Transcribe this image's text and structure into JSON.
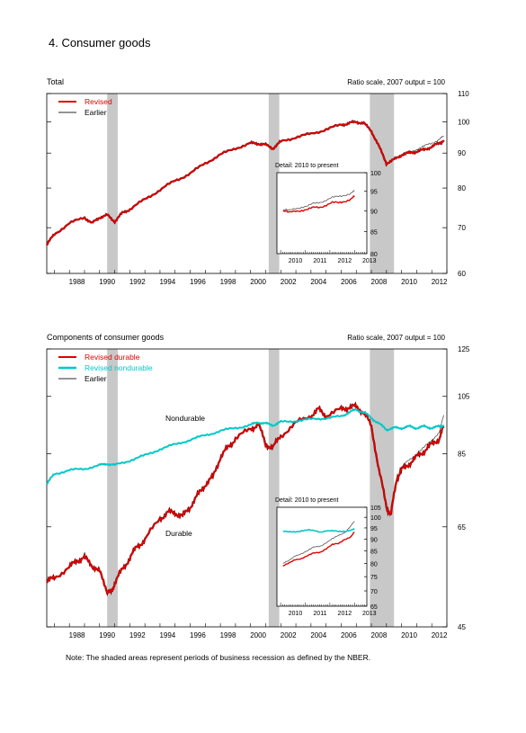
{
  "page_title": "4. Consumer goods",
  "note": "Note: The shaded areas represent periods of business recession as defined by the NBER.",
  "colors": {
    "revised": "#e00000",
    "revised_dark": "#7a0000",
    "earlier": "#555555",
    "nondurable": "#00c8c8",
    "recession": "#c8c8c8"
  },
  "chart_data": [
    {
      "type": "line",
      "title": "Total",
      "scale_note": "Ratio scale, 2007 output = 100",
      "y_scale": "log",
      "ylim": [
        60,
        110
      ],
      "xlim": [
        1986.5,
        2013
      ],
      "y_ticks": [
        60,
        70,
        80,
        90,
        100,
        110
      ],
      "x_ticks": [
        "1988",
        "1990",
        "1992",
        "1994",
        "1996",
        "1998",
        "2000",
        "2002",
        "2004",
        "2006",
        "2008",
        "2010",
        "2012"
      ],
      "recessions": [
        [
          1990.5,
          1991.2
        ],
        [
          2001.2,
          2001.9
        ],
        [
          2007.9,
          2009.5
        ]
      ],
      "legend": [
        "Revised",
        "Earlier"
      ],
      "series": [
        {
          "name": "Revised",
          "x": [
            1986.5,
            1987,
            1988,
            1989,
            1989.5,
            1990,
            1990.5,
            1991,
            1991.5,
            1992,
            1993,
            1994,
            1995,
            1996,
            1997,
            1998,
            1999,
            2000,
            2000.5,
            2001,
            2001.5,
            2002,
            2003,
            2004,
            2005,
            2006,
            2006.5,
            2007,
            2007.5,
            2008,
            2008.5,
            2009,
            2009.5,
            2010,
            2010.5,
            2011,
            2011.5,
            2012,
            2012.5,
            2012.8
          ],
          "values": [
            66,
            68.5,
            71,
            72.5,
            71,
            72.5,
            73,
            71.5,
            73.5,
            74.5,
            77,
            79.5,
            82,
            84,
            87,
            89.5,
            91.5,
            93,
            93,
            92.5,
            91.5,
            93.5,
            95,
            96,
            97.5,
            99,
            99.5,
            100,
            99.5,
            97,
            92,
            87,
            88,
            89.5,
            90,
            90.5,
            91,
            92,
            93,
            94
          ]
        },
        {
          "name": "Earlier",
          "x": [
            2010,
            2010.5,
            2011,
            2011.5,
            2012,
            2012.5,
            2012.8
          ],
          "values": [
            89.6,
            90.3,
            91.2,
            92,
            93.2,
            94.2,
            95.2
          ]
        }
      ],
      "inset": {
        "title": "Detail: 2010 to present",
        "ylim": [
          80,
          100
        ],
        "y_ticks": [
          80,
          85,
          90,
          95,
          100
        ],
        "x_ticks": [
          "2010",
          "2011",
          "2012",
          "2013"
        ],
        "series": [
          {
            "name": "Revised",
            "x": [
              2010,
              2010.25,
              2010.5,
              2010.75,
              2011,
              2011.25,
              2011.5,
              2011.75,
              2012,
              2012.25,
              2012.5,
              2012.75,
              2012.9
            ],
            "values": [
              90,
              89.5,
              90,
              90.2,
              90.3,
              90.8,
              91,
              91.5,
              92,
              92,
              92.5,
              93,
              93.6
            ]
          },
          {
            "name": "Earlier",
            "x": [
              2010,
              2010.25,
              2010.5,
              2010.75,
              2011,
              2011.25,
              2011.5,
              2011.75,
              2012,
              2012.25,
              2012.5,
              2012.75,
              2012.9
            ],
            "values": [
              90.3,
              90,
              90.6,
              91,
              91.2,
              91.8,
              92.2,
              92.8,
              93.3,
              93.6,
              94.1,
              94.5,
              95
            ]
          }
        ]
      }
    },
    {
      "type": "line",
      "title": "Components of consumer goods",
      "scale_note": "Ratio scale, 2007 output = 100",
      "y_scale": "log",
      "ylim": [
        45,
        125
      ],
      "xlim": [
        1986.5,
        2013
      ],
      "y_ticks": [
        45,
        65,
        85,
        105,
        125
      ],
      "x_ticks": [
        "1988",
        "1990",
        "1992",
        "1994",
        "1996",
        "1998",
        "2000",
        "2002",
        "2004",
        "2006",
        "2008",
        "2010",
        "2012"
      ],
      "recessions": [
        [
          1990.5,
          1991.2
        ],
        [
          2001.2,
          2001.9
        ],
        [
          2007.9,
          2009.5
        ]
      ],
      "legend": [
        "Revised durable",
        "Revised nondurable",
        "Earlier"
      ],
      "labels": [
        "Nondurable",
        "Durable"
      ],
      "series": [
        {
          "name": "Revised durable",
          "x": [
            1986.5,
            1987,
            1988,
            1988.5,
            1989,
            1989.5,
            1990,
            1990.5,
            1990.8,
            1991,
            1991.5,
            1992,
            1992.5,
            1993,
            1994,
            1994.5,
            1995,
            1995.5,
            1996,
            1996.5,
            1997,
            1997.5,
            1998,
            1998.5,
            1999,
            2000,
            2000.5,
            2001,
            2001.5,
            2002,
            2003,
            2004,
            2004.5,
            2005,
            2006,
            2006.5,
            2007,
            2007.5,
            2008,
            2008.5,
            2009,
            2009.3,
            2009.7,
            2010,
            2010.5,
            2011,
            2011.5,
            2012,
            2012.5,
            2012.8
          ],
          "values": [
            53,
            54,
            56,
            57.5,
            58,
            56.5,
            55,
            51.5,
            51,
            53,
            55.5,
            58,
            60.5,
            62,
            67,
            68.5,
            68.5,
            67.5,
            70,
            73,
            76,
            78,
            84,
            87,
            90,
            93,
            95,
            88,
            87,
            91,
            95,
            98,
            100,
            98,
            100,
            101,
            101,
            99,
            94,
            80,
            70,
            68,
            78,
            80,
            82,
            84,
            86,
            88,
            90,
            94
          ]
        },
        {
          "name": "Revised nondurable",
          "x": [
            1986.5,
            1987,
            1988,
            1989,
            1990,
            1990.5,
            1991,
            1992,
            1993,
            1994,
            1995,
            1996,
            1997,
            1998,
            1999,
            2000,
            2000.5,
            2001,
            2001.5,
            2002,
            2003,
            2004,
            2005,
            2006,
            2006.5,
            2007,
            2007.5,
            2008,
            2008.5,
            2009,
            2009.5,
            2010,
            2010.5,
            2011,
            2011.5,
            2012,
            2012.5,
            2012.8
          ],
          "values": [
            76,
            79,
            80,
            80.5,
            81.5,
            82,
            81.5,
            83,
            84.5,
            86.5,
            88,
            89.5,
            91,
            92.5,
            93.5,
            94.5,
            95.5,
            95,
            94.5,
            95.5,
            96,
            96.5,
            97,
            97.5,
            99,
            100,
            99,
            97,
            95,
            93,
            93.5,
            93.5,
            94,
            93.5,
            94,
            93.5,
            94,
            94.5
          ]
        },
        {
          "name": "Earlier",
          "x": [
            2010,
            2010.5,
            2011,
            2011.5,
            2012,
            2012.5,
            2012.8
          ],
          "values": [
            81,
            83,
            85,
            87,
            89.5,
            92,
            98
          ]
        }
      ],
      "inset": {
        "title": "Detail: 2010 to present",
        "ylim": [
          65,
          105
        ],
        "y_ticks": [
          65,
          70,
          75,
          80,
          85,
          90,
          95,
          100,
          105
        ],
        "x_ticks": [
          "2010",
          "2011",
          "2012",
          "2013"
        ],
        "series": [
          {
            "name": "Revised durable",
            "x": [
              2010,
              2010.25,
              2010.5,
              2010.75,
              2011,
              2011.25,
              2011.5,
              2011.75,
              2012,
              2012.25,
              2012.5,
              2012.75,
              2012.9
            ],
            "values": [
              79,
              80,
              81.5,
              82,
              83,
              84,
              84.5,
              86,
              87.5,
              88,
              90,
              91,
              93
            ]
          },
          {
            "name": "Revised nondurable",
            "x": [
              2010,
              2010.25,
              2010.5,
              2010.75,
              2011,
              2011.25,
              2011.5,
              2011.75,
              2012,
              2012.25,
              2012.5,
              2012.75,
              2012.9
            ],
            "values": [
              93.5,
              93,
              93.2,
              93.8,
              94,
              93.6,
              93.2,
              93.8,
              93.5,
              93.3,
              93.6,
              94,
              94.3
            ]
          },
          {
            "name": "Earlier",
            "x": [
              2010,
              2010.25,
              2010.5,
              2010.75,
              2011,
              2011.25,
              2011.5,
              2011.75,
              2012,
              2012.25,
              2012.5,
              2012.75,
              2012.9
            ],
            "values": [
              80,
              81,
              83,
              84,
              85,
              86.5,
              87,
              88.5,
              90,
              91.5,
              93,
              96,
              98
            ]
          }
        ]
      }
    }
  ]
}
